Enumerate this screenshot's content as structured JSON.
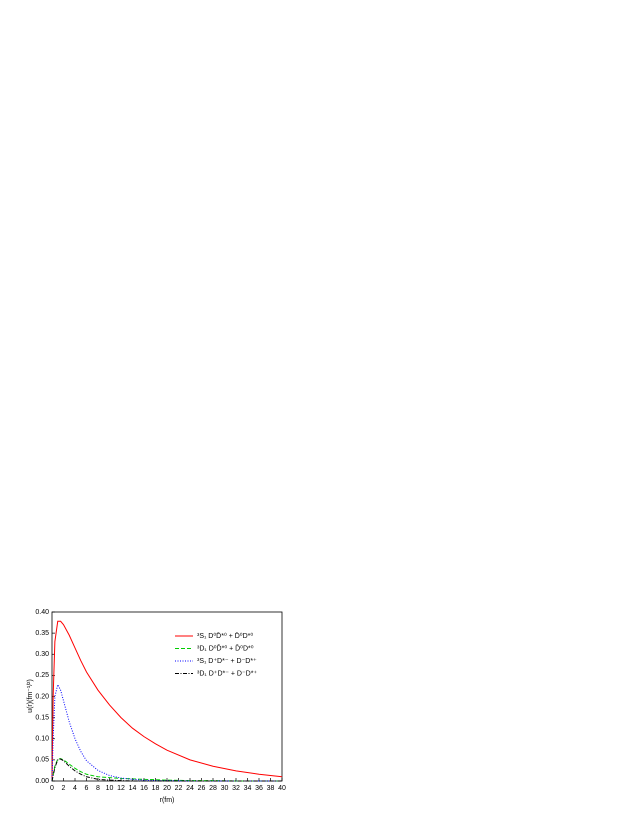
{
  "chart_data": {
    "type": "line",
    "x_label": "r(fm)",
    "y_label": "u(r)(fm⁻¹/²)",
    "x": [
      0,
      0.2,
      0.5,
      1,
      1.5,
      2,
      3,
      4,
      5,
      6,
      8,
      10,
      12,
      14,
      16,
      18,
      20,
      24,
      28,
      32,
      36,
      40
    ],
    "series": [
      {
        "name": "³S₁ D⁰D̄*⁰ + D̄⁰D*⁰",
        "color": "#ff0000",
        "style": "solid",
        "values": [
          0,
          0.2,
          0.33,
          0.378,
          0.378,
          0.37,
          0.345,
          0.315,
          0.285,
          0.258,
          0.215,
          0.18,
          0.15,
          0.125,
          0.105,
          0.088,
          0.073,
          0.05,
          0.035,
          0.024,
          0.016,
          0.01
        ]
      },
      {
        "name": "³D₁ D⁰D̄*⁰ + D̄⁰D*⁰",
        "color": "#00cc00",
        "style": "dashed",
        "values": [
          0,
          0.015,
          0.035,
          0.052,
          0.053,
          0.05,
          0.04,
          0.03,
          0.022,
          0.016,
          0.01,
          0.008,
          0.006,
          0.005,
          0.004,
          0.003,
          0.002,
          0.001,
          0.001,
          0,
          0,
          0
        ]
      },
      {
        "name": "³S₁ D⁺D*⁻ + D⁻D*⁺",
        "color": "#0000ff",
        "style": "dotted",
        "values": [
          0,
          0.1,
          0.2,
          0.228,
          0.215,
          0.19,
          0.14,
          0.1,
          0.07,
          0.048,
          0.025,
          0.013,
          0.007,
          0.004,
          0.002,
          0.001,
          0.001,
          0,
          0,
          0,
          0,
          0
        ]
      },
      {
        "name": "³D₁ D⁺D*⁻ + D⁻D*⁺",
        "color": "#000000",
        "style": "dashdot",
        "values": [
          0,
          0.012,
          0.032,
          0.05,
          0.052,
          0.048,
          0.035,
          0.024,
          0.016,
          0.01,
          0.004,
          0.002,
          0.001,
          0,
          0,
          0,
          0,
          0,
          0,
          0,
          0,
          0
        ]
      }
    ],
    "xlim": [
      0,
      40
    ],
    "xticks": [
      0,
      2,
      4,
      6,
      8,
      10,
      12,
      14,
      16,
      18,
      20,
      22,
      24,
      26,
      28,
      30,
      32,
      34,
      36,
      38,
      40
    ],
    "ylim": [
      0,
      0.4
    ],
    "yticks": [
      {
        "value": 0,
        "label": "0.00"
      },
      {
        "value": 0.05,
        "label": "0.05"
      },
      {
        "value": 0.1,
        "label": "0.10"
      },
      {
        "value": 0.15,
        "label": "0.15"
      },
      {
        "value": 0.2,
        "label": "0.20"
      },
      {
        "value": 0.25,
        "label": "0.25"
      },
      {
        "value": 0.3,
        "label": "0.30"
      },
      {
        "value": 0.35,
        "label": "0.35"
      },
      {
        "value": 0.4,
        "label": "0.40"
      }
    ],
    "legend": "upper right"
  }
}
